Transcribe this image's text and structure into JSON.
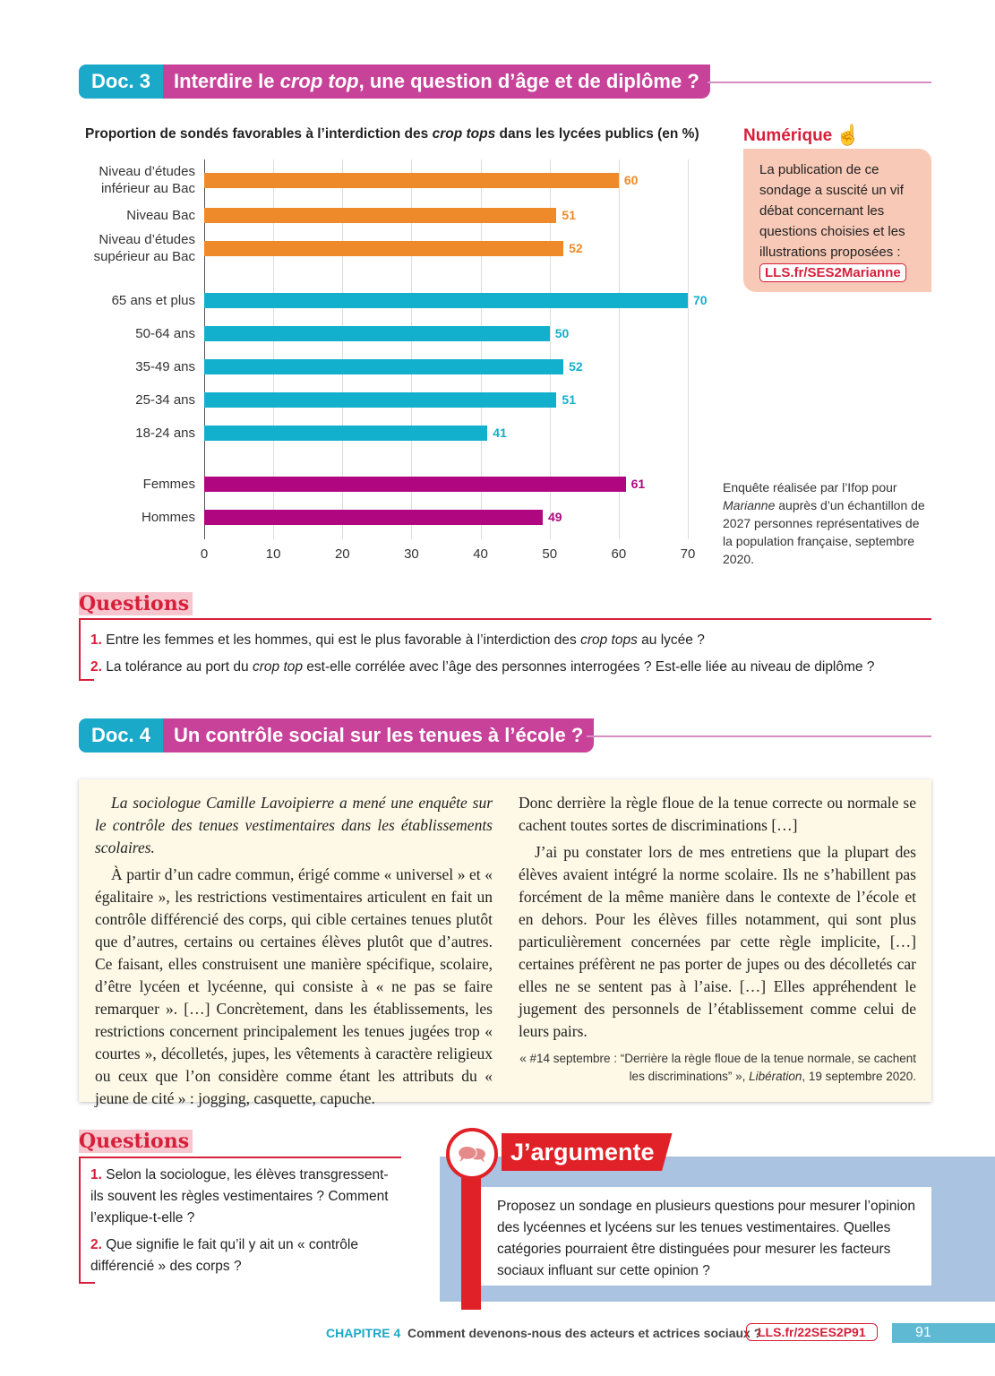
{
  "doc3": {
    "number": "Doc. 3",
    "title_pre": "Interdire le ",
    "title_em": "crop top",
    "title_post": ", une question d’âge et de diplôme ?"
  },
  "chart_title_pre": "Proportion de sondés favorables à l’interdiction des ",
  "chart_title_em": "crop tops",
  "chart_title_post": " dans les lycées publics (en %)",
  "chart_data": {
    "type": "bar",
    "orientation": "horizontal",
    "title": "Proportion de sondés favorables à l’interdiction des crop tops dans les lycées publics (en %)",
    "categories": [
      "Niveau d’études inférieur au Bac",
      "Niveau Bac",
      "Niveau d’études supérieur au Bac",
      "65 ans et plus",
      "50-64 ans",
      "35-49 ans",
      "25-34 ans",
      "18-24 ans",
      "Femmes",
      "Hommes"
    ],
    "values": [
      60,
      51,
      52,
      70,
      50,
      52,
      51,
      41,
      61,
      49
    ],
    "groups": [
      "diplome",
      "diplome",
      "diplome",
      "age",
      "age",
      "age",
      "age",
      "age",
      "sexe",
      "sexe"
    ],
    "colors": {
      "diplome": "#ef8a2a",
      "age": "#12b0cc",
      "sexe": "#b0067f"
    },
    "xlim": [
      0,
      70
    ],
    "xticks": [
      0,
      10,
      20,
      30,
      40,
      50,
      60,
      70
    ],
    "grid": true
  },
  "numerique": {
    "title": "Numérique",
    "text": "La publication de ce sondage a suscité un vif débat concernant les questions choisies et les illustrations proposées :",
    "link": "LLS.fr/SES2Marianne"
  },
  "source1": {
    "pre": "Enquête réalisée par l’Ifop pour ",
    "em": "Marianne",
    "post": " auprès d’un échantillon de 2027 personnes représentatives de la population française, septembre 2020."
  },
  "questions1": {
    "title": "Questions",
    "items": [
      {
        "n": "1.",
        "pre": " Entre les femmes et les hommes, qui est le plus favorable à l’interdiction des ",
        "em": "crop tops",
        "post": " au lycée ?"
      },
      {
        "n": "2.",
        "pre": " La tolérance au port du ",
        "em": "crop top",
        "post": " est-elle corrélée avec l’âge des personnes interrogées ? Est-elle liée au niveau de diplôme ?"
      }
    ]
  },
  "doc4": {
    "number": "Doc. 4",
    "title": "Un contrôle social sur les tenues à l’école ?"
  },
  "text4": {
    "intro": "La sociologue Camille Lavoipierre a mené une enquête sur le contrôle des tenues vestimentaires dans les établissements scolaires.",
    "p1": "À partir d’un cadre commun, érigé comme « universel » et « égalitaire », les restrictions vestimentaires articulent en fait un contrôle différencié des corps, qui cible certaines tenues plutôt que d’autres, certains ou certaines élèves plutôt que d’autres. Ce faisant, elles construisent une manière spécifique, scolaire, d’être lycéen et lycéenne, qui consiste à « ne pas se faire remarquer ». […] Concrètement, dans les établissements, les restrictions concernent principalement les tenues jugées trop « courtes », décolletés, jupes, les vêtements à caractère religieux ou ceux que l’on considère comme étant les attributs du « jeune de cité » : jogging, casquette, capuche.",
    "p2": "Donc derrière la règle floue de la tenue correcte ou normale se cachent toutes sortes de discriminations […]",
    "p3": "J’ai pu constater lors de mes entretiens que la plupart des élèves avaient intégré la norme scolaire. Ils ne s’habillent pas forcément de la même manière dans le contexte de l’école et en dehors. Pour les élèves filles notamment, qui sont plus particulièrement concernées par cette règle implicite, […] certaines préfèrent ne pas porter de jupes ou des décolletés car elles ne se sentent pas à l’aise. […] Elles appréhendent le jugement des personnels de l’établissement comme celui de leurs pairs.",
    "source_pre": "« #14 septembre : “Derrière la règle floue de la tenue normale, se cachent les discriminations” », ",
    "source_em": "Libération",
    "source_post": ", 19 septembre 2020."
  },
  "questions2": {
    "title": "Questions",
    "items": [
      {
        "n": "1.",
        "text": " Selon la sociologue, les élèves transgressent-ils souvent les règles vestimentaires ? Comment l’explique-t-elle ?"
      },
      {
        "n": "2.",
        "text": " Que signifie le fait qu’il y ait un « contrôle différencié » des corps ?"
      }
    ]
  },
  "jargumente": {
    "title": "J’argumente",
    "text": "Proposez un sondage en plusieurs questions pour mesurer l’opinion des lycéennes et lycéens sur les tenues vestimentaires. Quelles catégories pourraient être distinguées pour mesurer les facteurs sociaux influant sur cette opinion ?",
    "icon": "speech-bubbles-icon"
  },
  "footer": {
    "chapter": "CHAPITRE 4",
    "title": "Comment devenons-nous des acteurs et actrices sociaux ?",
    "link": "LLS.fr/22SES2P91",
    "page": "91"
  }
}
